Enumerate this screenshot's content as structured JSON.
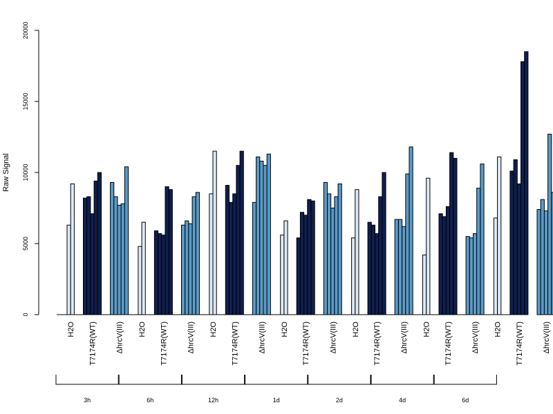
{
  "chart_data": {
    "type": "bar",
    "title": "",
    "xlabel": "",
    "ylabel": "Raw Signal",
    "ylim": [
      0,
      20000
    ],
    "yticks": [
      0,
      5000,
      10000,
      15000,
      20000
    ],
    "grid": false,
    "legend": "none",
    "treatments": [
      {
        "name": "H2O",
        "label": "H2O",
        "color": "#dce9f5"
      },
      {
        "name": "T7174R(WT)",
        "label": "T7174R(WT)",
        "color": "#0f1f4f"
      },
      {
        "name": "ΔhrcV(III)",
        "label": "ΔhrcV(III)",
        "color": "#5a9bc8"
      }
    ],
    "groups": [
      {
        "label": "3h",
        "values": [
          [
            6300,
            9200
          ],
          [
            8200,
            8300,
            7100,
            9400,
            10000
          ],
          [
            9300,
            8300,
            7700,
            7800,
            10400
          ]
        ]
      },
      {
        "label": "6h",
        "values": [
          [
            4800,
            6500
          ],
          [
            5900,
            5700,
            5600,
            9000,
            8800
          ],
          [
            6300,
            6600,
            6400,
            8300,
            8600
          ]
        ]
      },
      {
        "label": "12h",
        "values": [
          [
            8500,
            11500
          ],
          [
            9100,
            7900,
            8500,
            10500,
            11500
          ],
          [
            7900,
            11100,
            10800,
            10500,
            11300
          ]
        ]
      },
      {
        "label": "1d",
        "values": [
          [
            5600,
            6600
          ],
          [
            5400,
            7200,
            7000,
            8100,
            8000
          ],
          [
            9300,
            8500,
            7500,
            8300,
            9200
          ]
        ]
      },
      {
        "label": "2d",
        "values": [
          [
            5400,
            8800
          ],
          [
            6500,
            6300,
            5700,
            8300,
            10000
          ],
          [
            6700,
            6700,
            6200,
            9900,
            11800
          ]
        ]
      },
      {
        "label": "4d",
        "values": [
          [
            4200,
            9600
          ],
          [
            7100,
            6900,
            7600,
            11400,
            11000
          ],
          [
            5500,
            5400,
            5700,
            8900,
            10600
          ]
        ]
      },
      {
        "label": "6d",
        "values": [
          [
            6800,
            11100
          ],
          [
            10100,
            10900,
            9200,
            17800,
            18500
          ],
          [
            7400,
            8100,
            7300,
            12700,
            8600
          ]
        ]
      }
    ]
  }
}
